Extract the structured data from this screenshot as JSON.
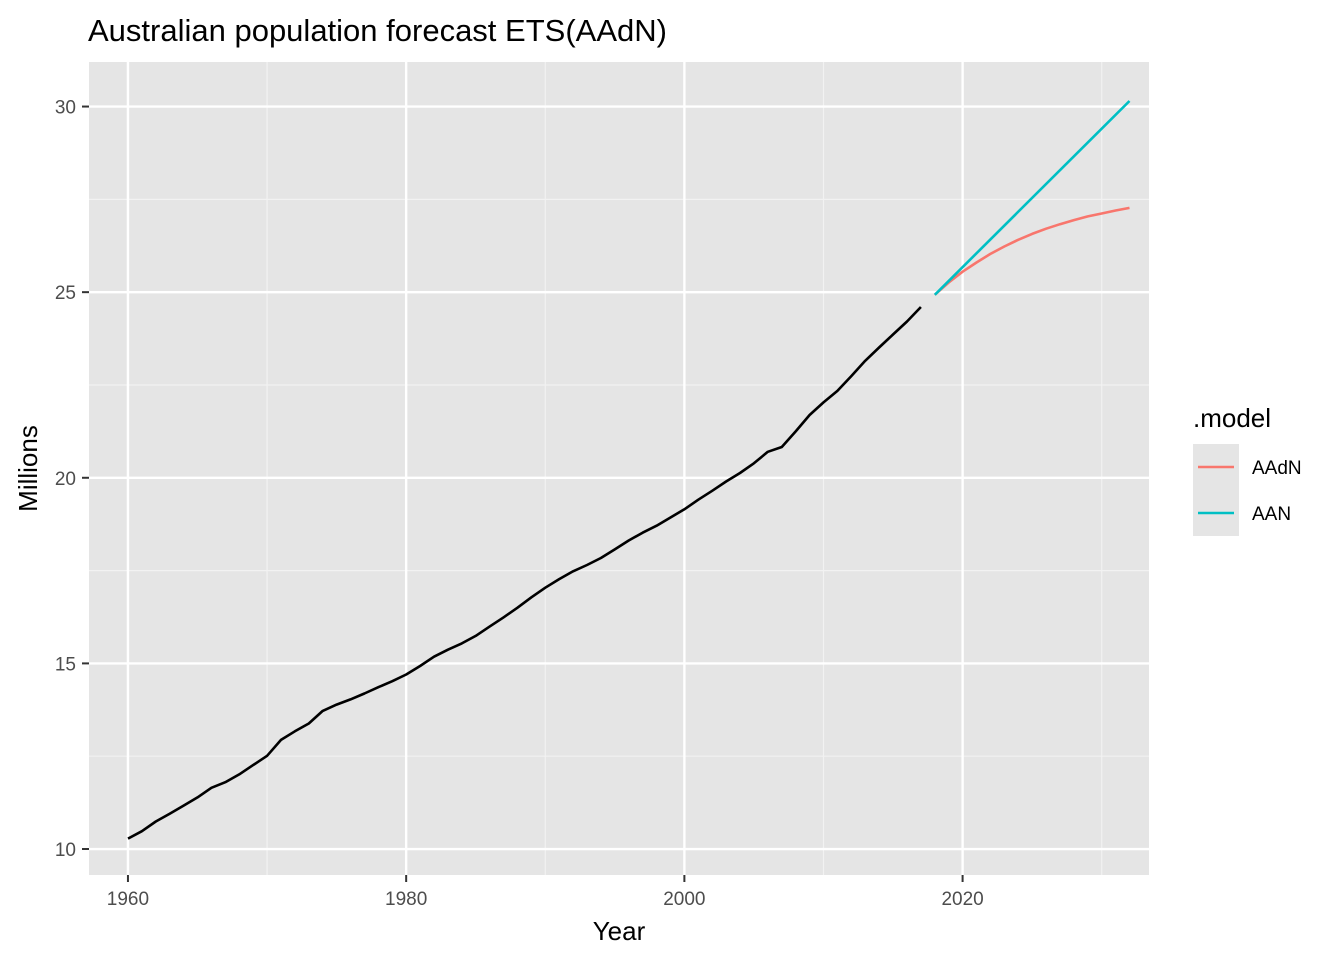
{
  "chart_data": {
    "type": "line",
    "title": "Australian population forecast ETS(AAdN)",
    "xlabel": "Year",
    "ylabel": "Millions",
    "xlim": [
      1957.2,
      2033.4
    ],
    "ylim": [
      9.3,
      31.2
    ],
    "x_ticks": [
      1960,
      1980,
      2000,
      2020
    ],
    "x_tick_labels": [
      "1960",
      "1980",
      "2000",
      "2020"
    ],
    "y_ticks": [
      10,
      15,
      20,
      25,
      30
    ],
    "y_tick_labels": [
      "10",
      "15",
      "20",
      "25",
      "30"
    ],
    "grid": true,
    "legend": {
      "title": ".model",
      "position": "right",
      "entries": [
        {
          "label": "AAdN",
          "color": "#f8766d"
        },
        {
          "label": "AAN",
          "color": "#00bfc4"
        }
      ]
    },
    "series": [
      {
        "color": "#000000",
        "x": [
          1960,
          1961,
          1962,
          1963,
          1964,
          1965,
          1966,
          1967,
          1968,
          1969,
          1970,
          1971,
          1972,
          1973,
          1974,
          1975,
          1976,
          1977,
          1978,
          1979,
          1980,
          1981,
          1982,
          1983,
          1984,
          1985,
          1986,
          1987,
          1988,
          1989,
          1990,
          1991,
          1992,
          1993,
          1994,
          1995,
          1996,
          1997,
          1998,
          1999,
          2000,
          2001,
          2002,
          2003,
          2004,
          2005,
          2006,
          2007,
          2008,
          2009,
          2010,
          2011,
          2012,
          2013,
          2014,
          2015,
          2016,
          2017
        ],
        "y": [
          10.28,
          10.48,
          10.74,
          10.95,
          11.17,
          11.39,
          11.65,
          11.8,
          12.01,
          12.26,
          12.51,
          12.94,
          13.17,
          13.38,
          13.72,
          13.89,
          14.03,
          14.19,
          14.36,
          14.52,
          14.7,
          14.93,
          15.18,
          15.37,
          15.54,
          15.74,
          15.99,
          16.24,
          16.5,
          16.78,
          17.04,
          17.27,
          17.48,
          17.65,
          17.84,
          18.07,
          18.31,
          18.52,
          18.71,
          18.93,
          19.15,
          19.41,
          19.65,
          19.9,
          20.13,
          20.39,
          20.7,
          20.83,
          21.25,
          21.69,
          22.03,
          22.34,
          22.74,
          23.15,
          23.51,
          23.86,
          24.21,
          24.6
        ]
      },
      {
        "name": "AAdN",
        "color": "#f8766d",
        "x": [
          2018,
          2019,
          2020,
          2021,
          2022,
          2023,
          2024,
          2025,
          2026,
          2027,
          2028,
          2029,
          2030,
          2031,
          2032
        ],
        "y": [
          24.93,
          25.26,
          25.55,
          25.8,
          26.03,
          26.23,
          26.41,
          26.57,
          26.71,
          26.83,
          26.94,
          27.04,
          27.12,
          27.2,
          27.27
        ]
      },
      {
        "name": "AAN",
        "color": "#00bfc4",
        "x": [
          2018,
          2032
        ],
        "y": [
          24.93,
          30.15
        ]
      }
    ]
  }
}
